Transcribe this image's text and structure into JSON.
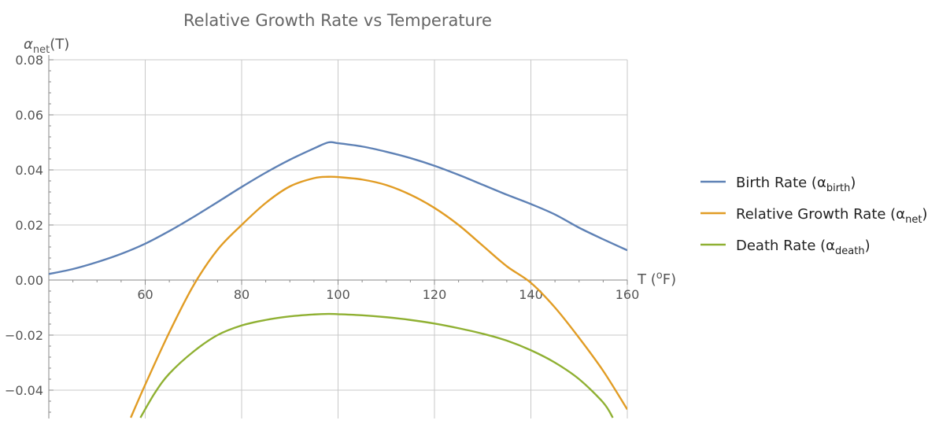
{
  "chart_data": {
    "type": "line",
    "title": "Relative Growth Rate vs Temperature",
    "ylabel": {
      "base": "α",
      "sub": "net",
      "suffix": "(T)"
    },
    "xlabel": {
      "base": "T (",
      "sup": "o",
      "suffix": "F)"
    },
    "xlim": [
      40,
      160
    ],
    "ylim": [
      -0.05,
      0.08
    ],
    "x_ticks": [
      60,
      80,
      100,
      120,
      140,
      160
    ],
    "x_tick_labels": [
      "60",
      "80",
      "100",
      "120",
      "140",
      "160"
    ],
    "y_ticks": [
      -0.04,
      -0.02,
      0.0,
      0.02,
      0.04,
      0.06,
      0.08
    ],
    "y_tick_labels": [
      "−0.04",
      "−0.02",
      "0.00",
      "0.02",
      "0.04",
      "0.06",
      "0.08"
    ],
    "grid": true,
    "legend_position": "right",
    "series": [
      {
        "name": "Birth Rate (α",
        "name_sub": "birth",
        "name_suffix": ")",
        "color": "#5E81B5",
        "x": [
          40,
          45,
          50,
          55,
          60,
          65,
          70,
          75,
          80,
          85,
          90,
          95,
          98,
          100,
          105,
          110,
          115,
          120,
          125,
          130,
          135,
          140,
          145,
          150,
          155,
          160
        ],
        "y": [
          0.0022,
          0.004,
          0.0065,
          0.0095,
          0.0132,
          0.0178,
          0.0229,
          0.0283,
          0.0338,
          0.039,
          0.0437,
          0.0478,
          0.05,
          0.0497,
          0.0485,
          0.0466,
          0.0443,
          0.0415,
          0.0382,
          0.0346,
          0.031,
          0.0276,
          0.0238,
          0.019,
          0.0148,
          0.0108
        ]
      },
      {
        "name": "Relative Growth Rate (α",
        "name_sub": "net",
        "name_suffix": ")",
        "color": "#E19C24",
        "x": [
          57,
          60,
          65,
          70,
          75,
          80,
          85,
          90,
          95,
          98,
          100,
          105,
          110,
          115,
          120,
          125,
          130,
          135,
          140,
          145,
          150,
          155,
          160
        ],
        "y": [
          -0.05,
          -0.038,
          -0.019,
          -0.002,
          0.011,
          0.02,
          0.028,
          0.034,
          0.037,
          0.0375,
          0.0374,
          0.0365,
          0.0345,
          0.031,
          0.0262,
          0.02,
          0.0125,
          0.005,
          -0.001,
          -0.01,
          -0.021,
          -0.033,
          -0.047
        ]
      },
      {
        "name": "Death Rate (α",
        "name_sub": "death",
        "name_suffix": ")",
        "color": "#8FB032",
        "x": [
          59,
          62,
          65,
          70,
          75,
          80,
          85,
          90,
          95,
          98,
          100,
          105,
          110,
          115,
          120,
          125,
          130,
          135,
          140,
          145,
          150,
          155,
          157
        ],
        "y": [
          -0.05,
          -0.041,
          -0.034,
          -0.026,
          -0.02,
          -0.0165,
          -0.0145,
          -0.0132,
          -0.0125,
          -0.0123,
          -0.0124,
          -0.0128,
          -0.0135,
          -0.0145,
          -0.0158,
          -0.0175,
          -0.0195,
          -0.022,
          -0.0255,
          -0.03,
          -0.036,
          -0.0445,
          -0.05
        ]
      }
    ]
  }
}
